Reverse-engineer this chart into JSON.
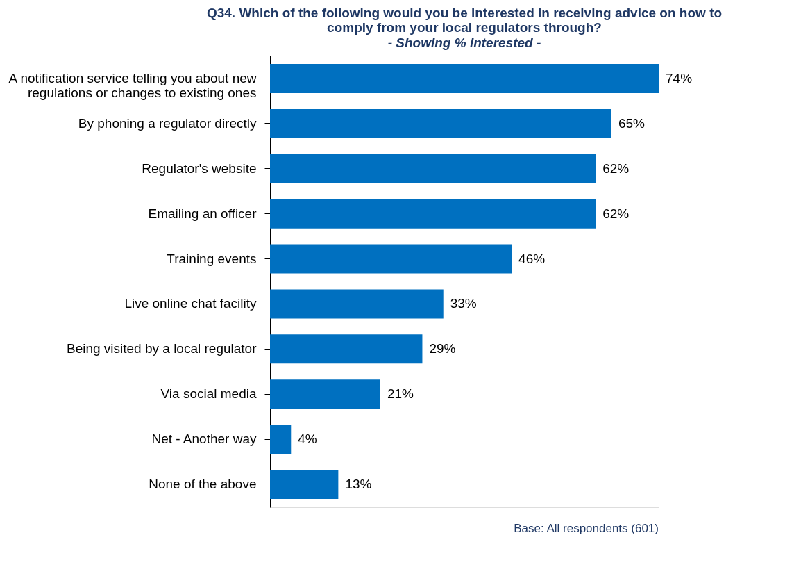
{
  "chart_data": {
    "type": "bar",
    "orientation": "horizontal",
    "title": "Q34. Which of the following would you be interested in receiving advice on how to\ncomply from your local regulators through?",
    "subtitle": "- Showing % interested -",
    "categories": [
      "A notification service telling you about new\nregulations or changes to existing ones",
      "By phoning a regulator directly",
      "Regulator's website",
      "Emailing an officer",
      "Training events",
      "Live online chat facility",
      "Being visited by a local regulator",
      "Via social media",
      "Net - Another way",
      "None of the above"
    ],
    "values": [
      74,
      65,
      62,
      62,
      46,
      33,
      29,
      21,
      4,
      13
    ],
    "value_labels": [
      "74%",
      "65%",
      "62%",
      "62%",
      "46%",
      "33%",
      "29%",
      "21%",
      "4%",
      "13%"
    ],
    "color": "#0070c0",
    "grid": false,
    "annotations": [
      "Base: All respondents (601)"
    ]
  }
}
